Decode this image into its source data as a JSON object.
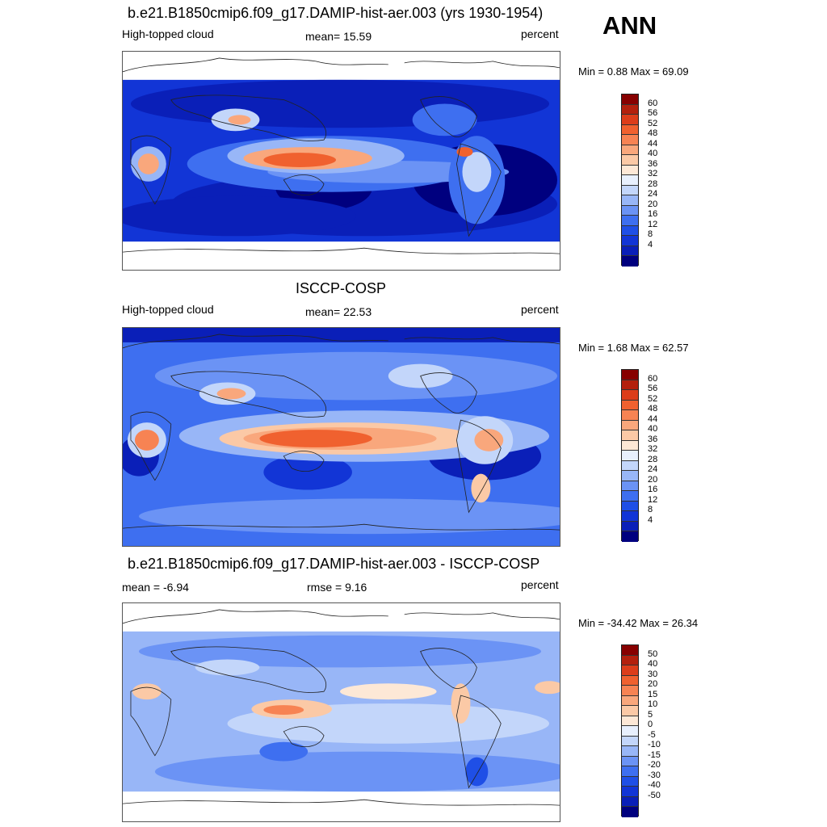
{
  "season": "ANN",
  "colors": {
    "seq": [
      "#00007f",
      "#0a1fb8",
      "#1235d6",
      "#1f4fe6",
      "#3e6ff0",
      "#6b93f5",
      "#98b6f7",
      "#c3d6fa",
      "#e8f0fd",
      "#fde8d6",
      "#fbc9a6",
      "#f9a77c",
      "#f78353",
      "#f0612f",
      "#dc3d1a",
      "#b3200d",
      "#870000"
    ],
    "diff": [
      "#00007f",
      "#0a1fb8",
      "#1235d6",
      "#1f4fe6",
      "#3e6ff0",
      "#6b93f5",
      "#98b6f7",
      "#c3d6fa",
      "#e8f0fd",
      "#fde8d6",
      "#fbc9a6",
      "#f9a77c",
      "#f78353",
      "#f0612f",
      "#dc3d1a",
      "#b3200d",
      "#870000"
    ]
  },
  "panels": [
    {
      "title": "b.e21.B1850cmip6.f09_g17.DAMIP-hist-aer.003 (yrs 1930-1954)",
      "left_label": "High-topped cloud",
      "center_label": "mean=  15.59",
      "right_label": "percent",
      "minmax": "Min =   0.88 Max =  69.09",
      "colorbar_ticks": [
        "60",
        "56",
        "52",
        "48",
        "44",
        "40",
        "36",
        "32",
        "28",
        "24",
        "20",
        "16",
        "12",
        "8",
        "4"
      ],
      "colorbar_key": "seq"
    },
    {
      "title": "ISCCP-COSP",
      "left_label": "High-topped cloud",
      "center_label": "mean=  22.53",
      "right_label": "percent",
      "minmax": "Min =   1.68 Max =  62.57",
      "colorbar_ticks": [
        "60",
        "56",
        "52",
        "48",
        "44",
        "40",
        "36",
        "32",
        "28",
        "24",
        "20",
        "16",
        "12",
        "8",
        "4"
      ],
      "colorbar_key": "seq"
    },
    {
      "title": "b.e21.B1850cmip6.f09_g17.DAMIP-hist-aer.003 - ISCCP-COSP",
      "left_label": "mean =  -6.94",
      "center_label": "rmse =   9.16",
      "right_label": "percent",
      "minmax": "Min = -34.42 Max =  26.34",
      "colorbar_ticks": [
        "50",
        "40",
        "30",
        "20",
        "15",
        "10",
        "5",
        "0",
        "-5",
        "-10",
        "-15",
        "-20",
        "-30",
        "-40",
        "-50"
      ],
      "colorbar_key": "diff"
    }
  ]
}
